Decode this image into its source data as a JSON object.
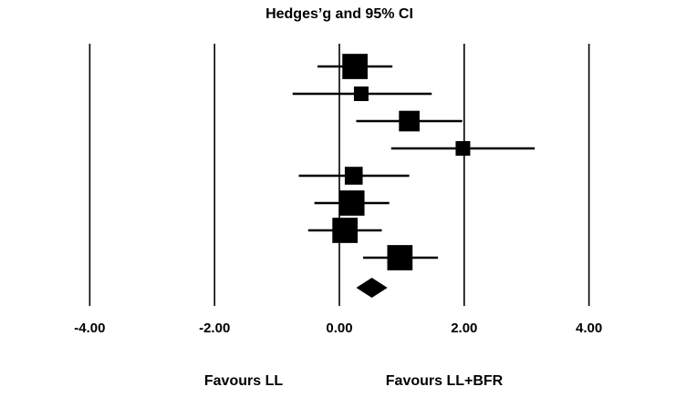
{
  "chart_data": {
    "type": "forest",
    "title": "Hedges’g and 95% CI",
    "xlim": [
      -5.0,
      5.0
    ],
    "ticks": [
      {
        "value": -4,
        "label": "-4.00"
      },
      {
        "value": -2,
        "label": "-2.00"
      },
      {
        "value": 0,
        "label": "0.00"
      },
      {
        "value": 2,
        "label": "2.00"
      },
      {
        "value": 4,
        "label": "4.00"
      }
    ],
    "grid": true,
    "left_label": "Favours LL",
    "right_label": "Favours LL+BFR",
    "studies": [
      {
        "g": 0.25,
        "lower": -0.35,
        "upper": 0.85,
        "weight": 3
      },
      {
        "g": 0.35,
        "lower": -0.75,
        "upper": 1.48,
        "weight": 1
      },
      {
        "g": 1.12,
        "lower": 0.27,
        "upper": 1.97,
        "weight": 2
      },
      {
        "g": 1.98,
        "lower": 0.83,
        "upper": 3.13,
        "weight": 1
      },
      {
        "g": 0.23,
        "lower": -0.65,
        "upper": 1.12,
        "weight": 1.5
      },
      {
        "g": 0.2,
        "lower": -0.4,
        "upper": 0.8,
        "weight": 3
      },
      {
        "g": 0.09,
        "lower": -0.5,
        "upper": 0.68,
        "weight": 3
      },
      {
        "g": 0.97,
        "lower": 0.38,
        "upper": 1.58,
        "weight": 3
      }
    ],
    "summary": {
      "g": 0.52,
      "lower": 0.27,
      "upper": 0.77
    }
  }
}
